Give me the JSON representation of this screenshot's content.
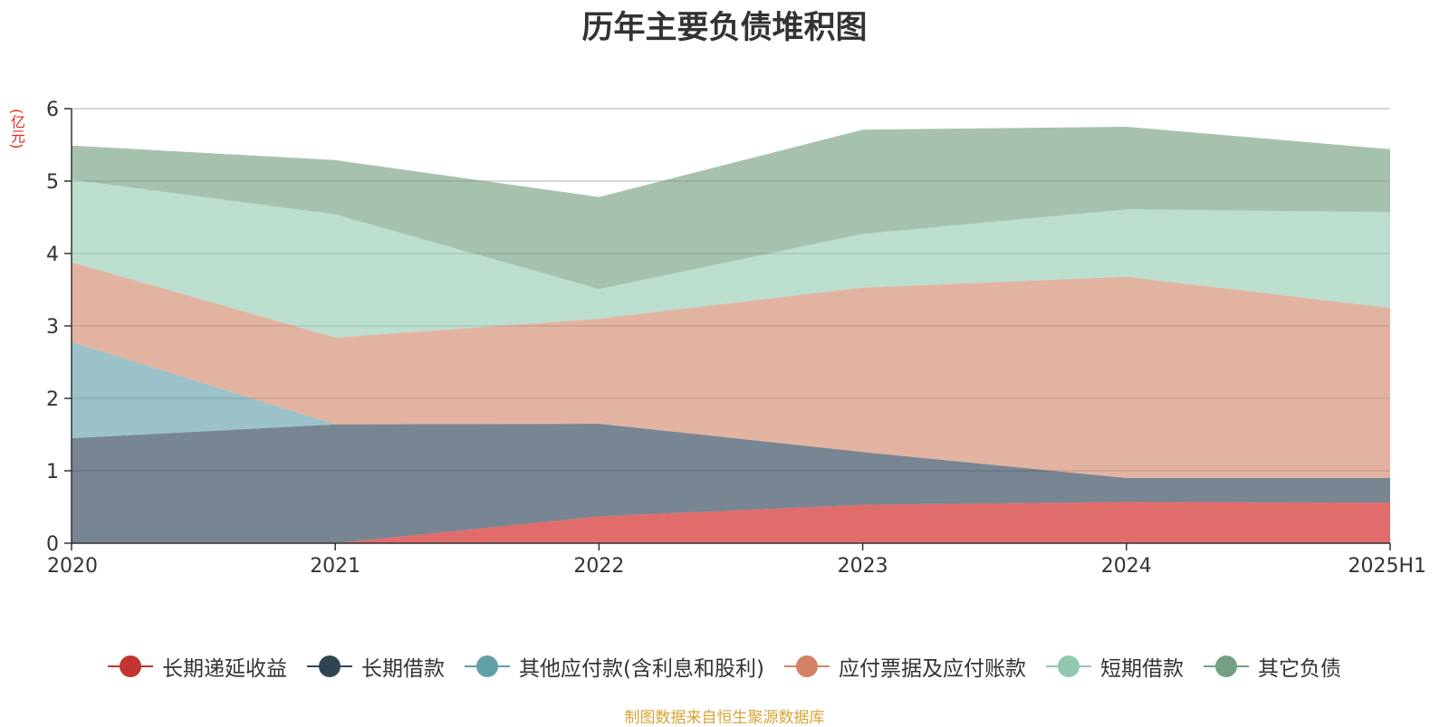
{
  "chart_data": {
    "type": "area",
    "title": "历年主要负债堆积图",
    "ylabel": "(亿元)",
    "categories": [
      "2020",
      "2021",
      "2022",
      "2023",
      "2024",
      "2025H1"
    ],
    "ylim": [
      0,
      6
    ],
    "yticks": [
      "0",
      "1",
      "2",
      "3",
      "4",
      "5",
      "6"
    ],
    "stacked": true,
    "grid": true,
    "legend_position": "bottom",
    "series": [
      {
        "name": "长期递延收益",
        "color": "#d63b3b",
        "line_color": "#c23531",
        "values": [
          0,
          0,
          0.37,
          0.53,
          0.57,
          0.56
        ]
      },
      {
        "name": "长期借款",
        "color": "#4b5c6d",
        "line_color": "#2f4554",
        "values": [
          1.45,
          1.64,
          1.28,
          0.73,
          0.33,
          0.34
        ]
      },
      {
        "name": "其他应付款(含利息和股利)",
        "color": "#79aeb6",
        "line_color": "#61a0a8",
        "values": [
          1.33,
          0,
          0,
          0,
          0,
          0
        ]
      },
      {
        "name": "应付票据及应付账款",
        "color": "#da9a83",
        "line_color": "#d48265",
        "values": [
          1.1,
          1.2,
          1.45,
          2.27,
          2.78,
          2.35
        ]
      },
      {
        "name": "短期借款",
        "color": "#a4d3be",
        "line_color": "#91c7ae",
        "values": [
          1.14,
          1.7,
          0.41,
          0.74,
          0.93,
          1.32
        ]
      },
      {
        "name": "其它负债",
        "color": "#88ad94",
        "line_color": "#749f83",
        "values": [
          0.47,
          0.75,
          1.27,
          1.44,
          1.14,
          0.87
        ]
      }
    ]
  },
  "source_note": "制图数据来自恒生聚源数据库"
}
